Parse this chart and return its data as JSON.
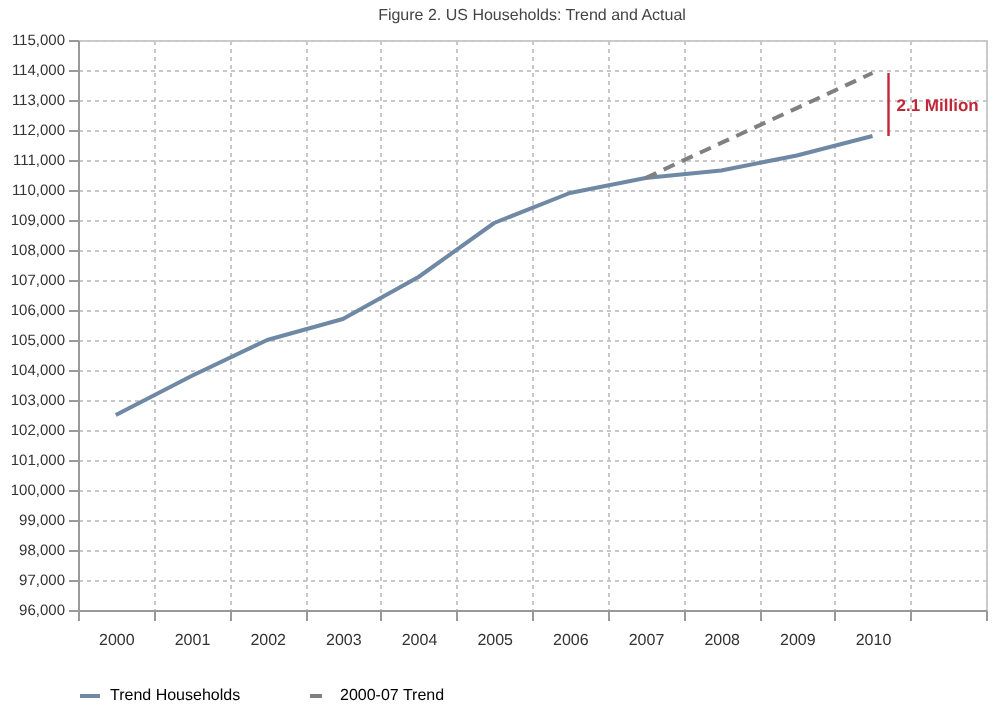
{
  "chart_data": {
    "type": "line",
    "title": "Figure 2. US Households: Trend and Actual",
    "categories": [
      "2000",
      "2001",
      "2002",
      "2003",
      "2004",
      "2005",
      "2006",
      "2007",
      "2008",
      "2009",
      "2010",
      null
    ],
    "series": [
      {
        "name": "Trend Households",
        "color": "#6f89a5",
        "line_style": "solid",
        "values": [
          102500,
          103800,
          105000,
          105700,
          107100,
          108900,
          109900,
          110400,
          110650,
          111150,
          111800,
          null
        ]
      },
      {
        "name": "2000-07 Trend",
        "color": "#808080",
        "line_style": "dashed",
        "values": [
          null,
          null,
          null,
          null,
          null,
          null,
          null,
          110400,
          111570,
          112730,
          113900,
          null
        ]
      }
    ],
    "ylim": [
      96000,
      115000
    ],
    "yticks": [
      {
        "value": 96000,
        "label": "96,000"
      },
      {
        "value": 97000,
        "label": "97,000"
      },
      {
        "value": 98000,
        "label": "98,000"
      },
      {
        "value": 99000,
        "label": "99,000"
      },
      {
        "value": 100000,
        "label": "100,000"
      },
      {
        "value": 101000,
        "label": "101,000"
      },
      {
        "value": 102000,
        "label": "102,000"
      },
      {
        "value": 103000,
        "label": "103,000"
      },
      {
        "value": 104000,
        "label": "104,000"
      },
      {
        "value": 105000,
        "label": "105,000"
      },
      {
        "value": 106000,
        "label": "106,000"
      },
      {
        "value": 107000,
        "label": "107,000"
      },
      {
        "value": 108000,
        "label": "108,000"
      },
      {
        "value": 109000,
        "label": "109,000"
      },
      {
        "value": 110000,
        "label": "110,000"
      },
      {
        "value": 111000,
        "label": "111,000"
      },
      {
        "value": 112000,
        "label": "112,000"
      },
      {
        "value": 113000,
        "label": "113,000"
      },
      {
        "value": 114000,
        "label": "114,000"
      },
      {
        "value": 115000,
        "label": "115,000"
      }
    ],
    "grid": true,
    "legend": "bottom",
    "marker": "none",
    "annotations": [
      "2.1 Million"
    ]
  }
}
